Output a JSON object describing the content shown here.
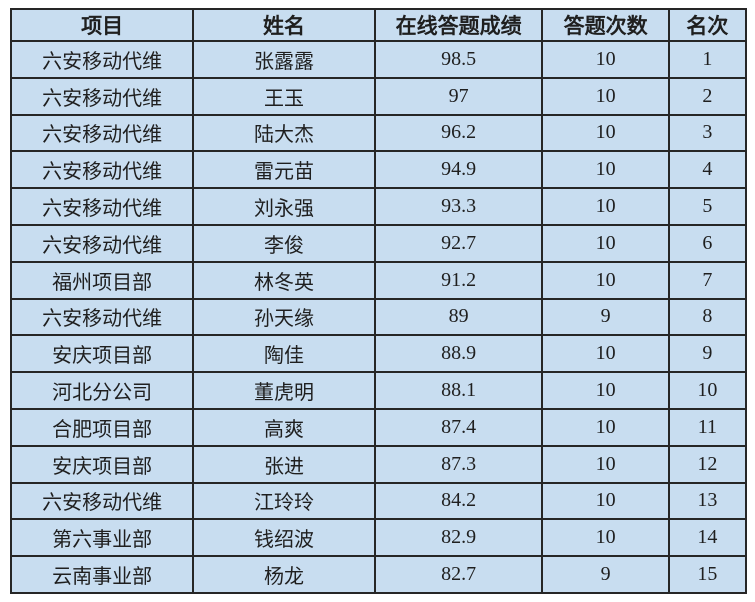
{
  "colors": {
    "cell_bg": "#c8ddf0",
    "border": "#262626",
    "text": "#1f1f1f",
    "page_bg": "#ffffff"
  },
  "chart_data": {
    "type": "table",
    "title": "",
    "columns": [
      "项目",
      "姓名",
      "在线答题成绩",
      "答题次数",
      "名次"
    ],
    "rows": [
      [
        "六安移动代维",
        "张露露",
        "98.5",
        "10",
        "1"
      ],
      [
        "六安移动代维",
        "王玉",
        "97",
        "10",
        "2"
      ],
      [
        "六安移动代维",
        "陆大杰",
        "96.2",
        "10",
        "3"
      ],
      [
        "六安移动代维",
        "雷元苗",
        "94.9",
        "10",
        "4"
      ],
      [
        "六安移动代维",
        "刘永强",
        "93.3",
        "10",
        "5"
      ],
      [
        "六安移动代维",
        "李俊",
        "92.7",
        "10",
        "6"
      ],
      [
        "福州项目部",
        "林冬英",
        "91.2",
        "10",
        "7"
      ],
      [
        "六安移动代维",
        "孙天缘",
        "89",
        "9",
        "8"
      ],
      [
        "安庆项目部",
        "陶佳",
        "88.9",
        "10",
        "9"
      ],
      [
        "河北分公司",
        "董虎明",
        "88.1",
        "10",
        "10"
      ],
      [
        "合肥项目部",
        "高爽",
        "87.4",
        "10",
        "11"
      ],
      [
        "安庆项目部",
        "张进",
        "87.3",
        "10",
        "12"
      ],
      [
        "六安移动代维",
        "江玲玲",
        "84.2",
        "10",
        "13"
      ],
      [
        "第六事业部",
        "钱绍波",
        "82.9",
        "10",
        "14"
      ],
      [
        "云南事业部",
        "杨龙",
        "82.7",
        "9",
        "15"
      ]
    ]
  }
}
